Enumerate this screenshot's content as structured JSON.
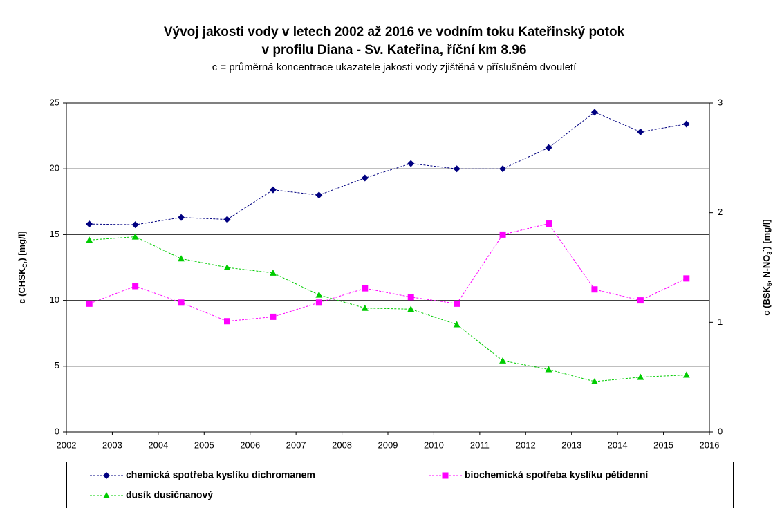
{
  "chart_data": {
    "type": "line",
    "title": "Vývoj jakosti vody v letech 2002 až 2016 ve vodním toku Kateřinský potok",
    "title2": "v profilu Diana - Sv. Kateřina, říční km 8.96",
    "subtitle": "c = průměrná koncentrace ukazatele jakosti vody zjištěná v příslušném dvouletí",
    "ylabel": [
      "c (CHSK",
      "Cr",
      ") [mg/l]"
    ],
    "y2label": [
      "c (BSK",
      "5",
      ", N-NO",
      "3",
      "-",
      ") [mg/l]"
    ],
    "x": [
      2002.5,
      2003.5,
      2004.5,
      2005.5,
      2006.5,
      2007.5,
      2008.5,
      2009.5,
      2010.5,
      2011.5,
      2012.5,
      2013.5,
      2014.5,
      2015.5
    ],
    "xlim": [
      2002,
      2016
    ],
    "xticks": [
      2002,
      2003,
      2004,
      2005,
      2006,
      2007,
      2008,
      2009,
      2010,
      2011,
      2012,
      2013,
      2014,
      2015,
      2016
    ],
    "ylim": [
      0,
      25
    ],
    "yticks": [
      0,
      5,
      10,
      15,
      20,
      25
    ],
    "y2lim": [
      0,
      3
    ],
    "y2ticks": [
      0,
      1,
      2,
      3
    ],
    "grid": true,
    "legend": "bottom",
    "series": [
      {
        "name": "chemická spotřeba kyslíku dichromanem",
        "color": "#000080",
        "marker": "diamond",
        "values": [
          15.8,
          15.75,
          16.3,
          16.15,
          18.4,
          18.0,
          19.3,
          20.4,
          20.0,
          20.0,
          21.6,
          24.3,
          22.8,
          23.4
        ]
      },
      {
        "name": "biochemická spotřeba kyslíku pětidenní",
        "color": "#ff00ff",
        "marker": "square",
        "axis": "y2",
        "values": [
          1.17,
          1.33,
          1.18,
          1.01,
          1.05,
          1.18,
          1.31,
          1.23,
          1.17,
          1.8,
          1.9,
          1.3,
          1.2,
          1.4
        ]
      },
      {
        "name": "dusík dusičnanový",
        "color": "#00cc00",
        "marker": "triangle",
        "axis": "y2",
        "values": [
          1.75,
          1.78,
          1.58,
          1.5,
          1.45,
          1.25,
          1.13,
          1.12,
          0.98,
          0.65,
          0.57,
          0.46,
          0.5,
          0.52
        ]
      }
    ]
  }
}
